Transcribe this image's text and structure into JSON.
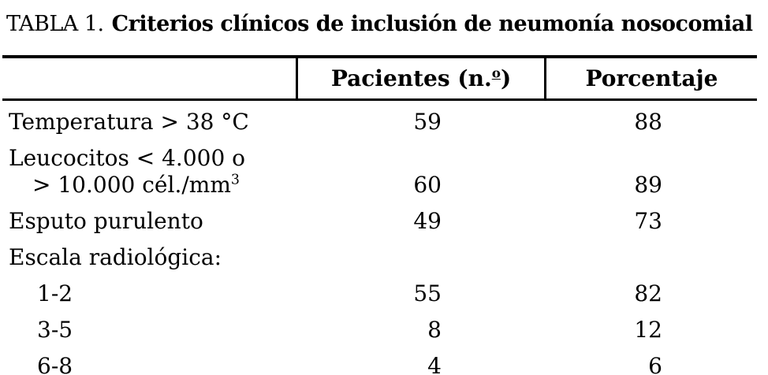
{
  "title": {
    "label": "TABLA 1.",
    "text": "Criterios clínicos de inclusión de neumonía nosocomial"
  },
  "header": {
    "col1": "",
    "pacientes_prefix": "Pacientes (n.",
    "pacientes_ordinal": "o",
    "pacientes_suffix": ")",
    "porcentaje": "Porcentaje"
  },
  "rows": [
    {
      "label": "Temperatura > 38 °C",
      "pacientes": "59",
      "porcentaje": "88"
    },
    {
      "label_line1": "Leucocitos < 4.000 o",
      "label_line2": "> 10.000 cél./mm",
      "label_line2_sup": "3",
      "pacientes": "60",
      "porcentaje": "89"
    },
    {
      "label": "Esputo purulento",
      "pacientes": "49",
      "porcentaje": "73"
    },
    {
      "label": "Escala radiológica:",
      "subrows": [
        {
          "label": "1-2",
          "pacientes": "55",
          "porcentaje": "82"
        },
        {
          "label": "3-5",
          "pacientes": "8",
          "porcentaje": "12"
        },
        {
          "label": "6-8",
          "pacientes": "4",
          "porcentaje": "6"
        }
      ]
    }
  ],
  "colors": {
    "text": "#000000",
    "background": "#ffffff",
    "rule": "#000000"
  }
}
